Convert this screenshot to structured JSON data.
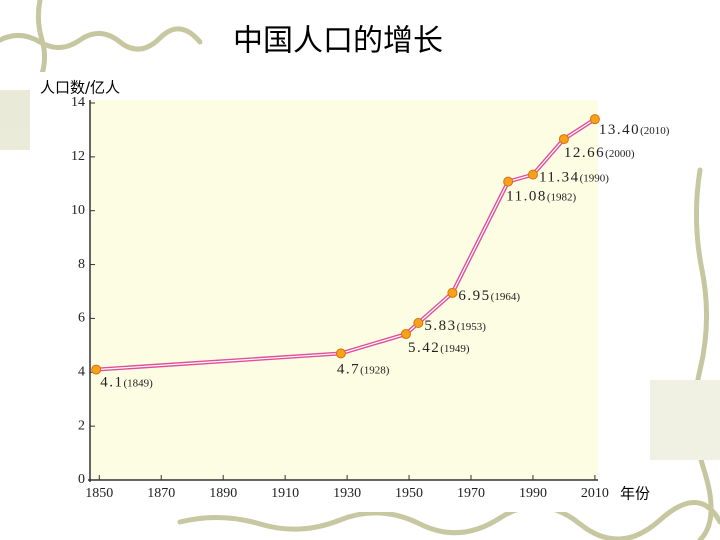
{
  "chart_data": {
    "type": "line",
    "title": "中国人口的增长",
    "y_label": "人口数/亿人",
    "x_label": "年份",
    "x": [
      1849,
      1928,
      1949,
      1953,
      1964,
      1982,
      1990,
      2000,
      2010
    ],
    "values": [
      4.1,
      4.7,
      5.42,
      5.83,
      6.95,
      11.08,
      11.34,
      12.66,
      13.4
    ],
    "value_labels": [
      "4.1",
      "4.7",
      "5.42",
      "5.83",
      "6.95",
      "11.08",
      "11.34",
      "12.66",
      "13.40"
    ],
    "year_labels": [
      "(1849)",
      "(1928)",
      "(1949)",
      "(1953)",
      "(1964)",
      "(1982)",
      "(1990)",
      "(2000)",
      "(2010)"
    ],
    "color": "#e0509a",
    "marker_color": "#f7a21c",
    "xlim": [
      1847,
      2011
    ],
    "xticks": [
      1850,
      1870,
      1890,
      1910,
      1930,
      1950,
      1970,
      1990,
      2010
    ],
    "ylim": [
      0,
      14
    ],
    "yticks": [
      0,
      2,
      4,
      6,
      8,
      10,
      12,
      14
    ]
  }
}
